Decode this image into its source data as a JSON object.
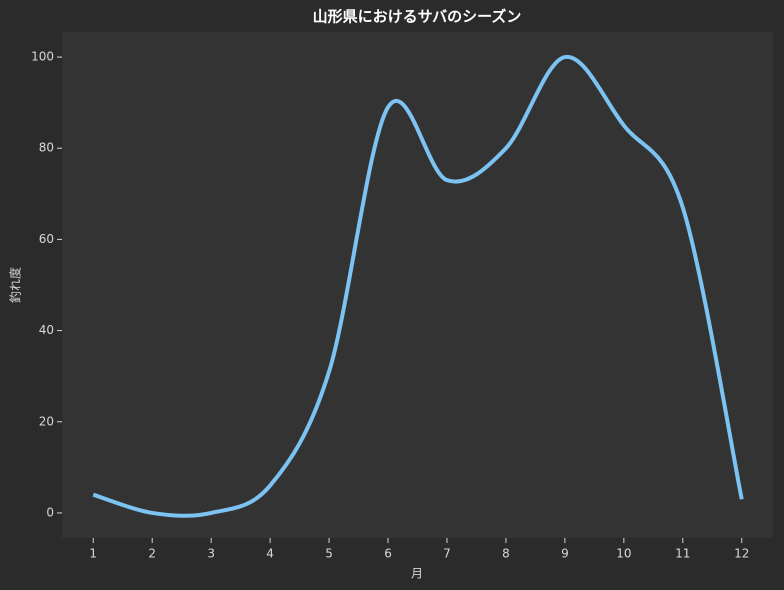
{
  "chart_data": {
    "type": "line",
    "title": "山形県におけるサバのシーズン",
    "x_label": "月",
    "y_label": "釣れ度",
    "x": [
      1,
      2,
      3,
      4,
      5,
      6,
      7,
      8,
      9,
      10,
      11,
      12
    ],
    "series": [
      {
        "name": "釣れ度",
        "color": "#7cc3f3",
        "values": [
          4,
          0,
          0,
          6,
          31,
          89,
          73,
          80,
          100,
          85,
          67,
          3
        ]
      }
    ],
    "xlim": [
      0.47,
      12.53
    ],
    "ylim": [
      -5.5,
      105.5
    ],
    "xticks": [
      1,
      2,
      3,
      4,
      5,
      6,
      7,
      8,
      9,
      10,
      11,
      12
    ],
    "yticks": [
      0,
      20,
      40,
      60,
      80,
      100
    ],
    "grid": false,
    "smooth": true
  }
}
